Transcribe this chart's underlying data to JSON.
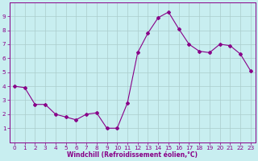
{
  "x": [
    0,
    1,
    2,
    3,
    4,
    5,
    6,
    7,
    8,
    9,
    10,
    11,
    12,
    13,
    14,
    15,
    16,
    17,
    18,
    19,
    20,
    21,
    22,
    23
  ],
  "y": [
    4.0,
    3.9,
    2.7,
    2.7,
    2.0,
    1.8,
    1.6,
    2.0,
    2.1,
    1.0,
    1.0,
    2.8,
    6.4,
    7.8,
    8.9,
    9.3,
    8.1,
    7.0,
    6.5,
    6.4,
    7.0,
    6.9,
    6.3,
    5.1
  ],
  "line_color": "#880088",
  "marker": "D",
  "marker_size": 2,
  "bg_color": "#c8eef0",
  "grid_color": "#aacccc",
  "xlabel": "Windchill (Refroidissement éolien,°C)",
  "xlabel_color": "#880088",
  "tick_color": "#880088",
  "ylim": [
    0,
    10
  ],
  "xlim": [
    -0.5,
    23.5
  ],
  "yticks": [
    1,
    2,
    3,
    4,
    5,
    6,
    7,
    8,
    9
  ],
  "xticks": [
    0,
    1,
    2,
    3,
    4,
    5,
    6,
    7,
    8,
    9,
    10,
    11,
    12,
    13,
    14,
    15,
    16,
    17,
    18,
    19,
    20,
    21,
    22,
    23
  ],
  "label_fontsize": 5.5,
  "tick_fontsize": 5.2
}
